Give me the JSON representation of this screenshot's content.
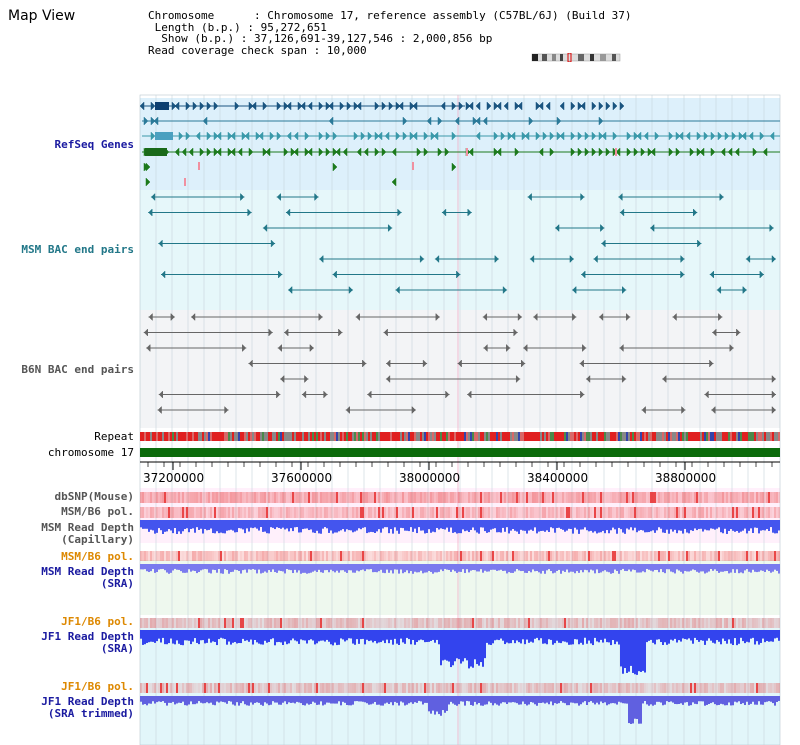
{
  "title": "Map View",
  "info": {
    "chromosome_label": "Chromosome",
    "chromosome_value": "Chromosome 17, reference assembly (C57BL/6J) (Build 37)",
    "length_label": "Length (b.p.)",
    "length_value": "95,272,651",
    "show_label": "Show (b.p.)",
    "show_value": "37,126,691-39,127,546 : 2,000,856 bp",
    "coverage_label": "Read coverage check span",
    "coverage_value": "10,000"
  },
  "tracks": {
    "refseq": "RefSeq Genes",
    "msm_bac": "MSM BAC end pairs",
    "b6n_bac": "B6N BAC end pairs",
    "repeat": "Repeat",
    "chromosome": "chromosome 17",
    "dbsnp": "dbSNP(Mouse)",
    "msm_b6_pol": "MSM/B6 pol.",
    "msm_depth_cap": "MSM Read Depth\n(Capillary)",
    "msm_b6_pol2": "MSM/B6 pol.",
    "msm_depth_sra": "MSM Read Depth\n(SRA)",
    "jf1_b6_pol": "JF1/B6 pol.",
    "jf1_depth_sra": "JF1 Read Depth\n(SRA)",
    "jf1_b6_pol2": "JF1/B6 pol.",
    "jf1_depth_trim": "JF1 Read Depth\n(SRA trimmed)"
  },
  "axis": {
    "ticks": [
      "37200000",
      "37600000",
      "38000000",
      "38400000",
      "38800000"
    ]
  },
  "colors": {
    "refseq_bg": "#ddf0fb",
    "msm_bg": "#e6f7fa",
    "b6n_bg": "#f3f4f6",
    "label_blue": "#1a1aa0",
    "label_teal": "#227788",
    "label_grey": "#555555",
    "label_orange": "#dd8800",
    "depth_blue": "#3333ee",
    "chromosome_green": "#0b6b0b"
  }
}
